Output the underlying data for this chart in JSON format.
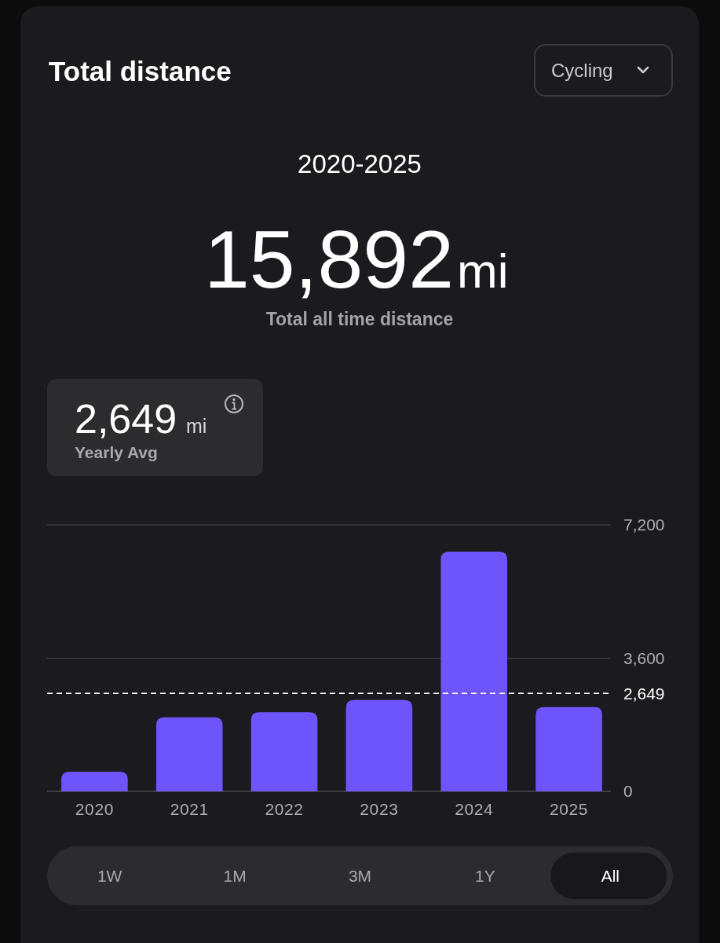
{
  "chart_data": {
    "type": "bar",
    "title": "Total distance",
    "subtitle": "2020-2025",
    "categories": [
      "2020",
      "2021",
      "2022",
      "2023",
      "2024",
      "2025"
    ],
    "values": [
      530,
      2000,
      2140,
      2470,
      6480,
      2280
    ],
    "color": "#6e55fb",
    "ylim": [
      0,
      7200
    ],
    "yticks": [
      0,
      {
        "value": 3600,
        "label": "3,600"
      },
      {
        "value": 7200,
        "label": "7,200"
      }
    ],
    "grid": "y",
    "ref_lines": [
      {
        "axis": "y",
        "value": 2649,
        "label": "2,649",
        "color": "#ffffff",
        "line_style": "dashed"
      }
    ],
    "annotations": [
      "Cycling",
      "15,892",
      "mi",
      "Total all time distance",
      "2,649",
      "mi",
      "Yearly Avg",
      "1W",
      "1M",
      "3M",
      "1Y",
      "All"
    ]
  }
}
